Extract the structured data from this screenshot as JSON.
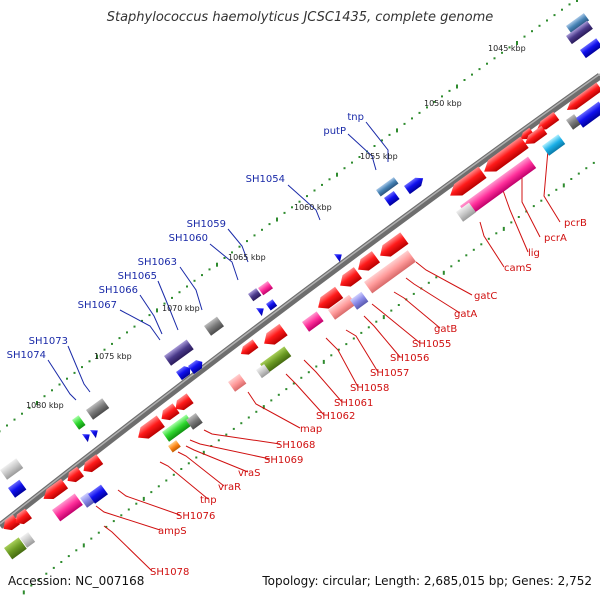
{
  "title": "Staphylococcus haemolyticus JCSC1435, complete genome",
  "accession": "Accession: NC_007168",
  "topology": "Topology: circular; Length: 2,685,015 bp; Genes: 2,752",
  "colors": {
    "backbone": "#6e6e6e",
    "tick": "#2e8b2e",
    "label_plus": "#1a2aa8",
    "label_minus": "#d01010",
    "red": "#ff1a1a",
    "blue": "#1010ee",
    "gray": "#7a7a7a",
    "pink": "#ff2e9a",
    "green": "#6b9a22"
  },
  "kbp_labels": [
    "1045 kbp",
    "1050 kbp",
    "1055 kbp",
    "1060 kbp",
    "1065 kbp",
    "1070 kbp",
    "1075 kbp",
    "1080 kbp"
  ],
  "plus_genes": [
    "tnp",
    "putP",
    "SH1054",
    "SH1059",
    "SH1060",
    "SH1063",
    "SH1065",
    "SH1066",
    "SH1067",
    "SH1073",
    "SH1074"
  ],
  "minus_genes": [
    "pcrB",
    "pcrA",
    "lig",
    "camS",
    "gatC",
    "gatA",
    "gatB",
    "SH1055",
    "SH1056",
    "SH1057",
    "SH1058",
    "SH1061",
    "SH1062",
    "map",
    "SH1068",
    "SH1069",
    "vraS",
    "vraR",
    "tnp",
    "SH1076",
    "ampS",
    "SH1078"
  ]
}
